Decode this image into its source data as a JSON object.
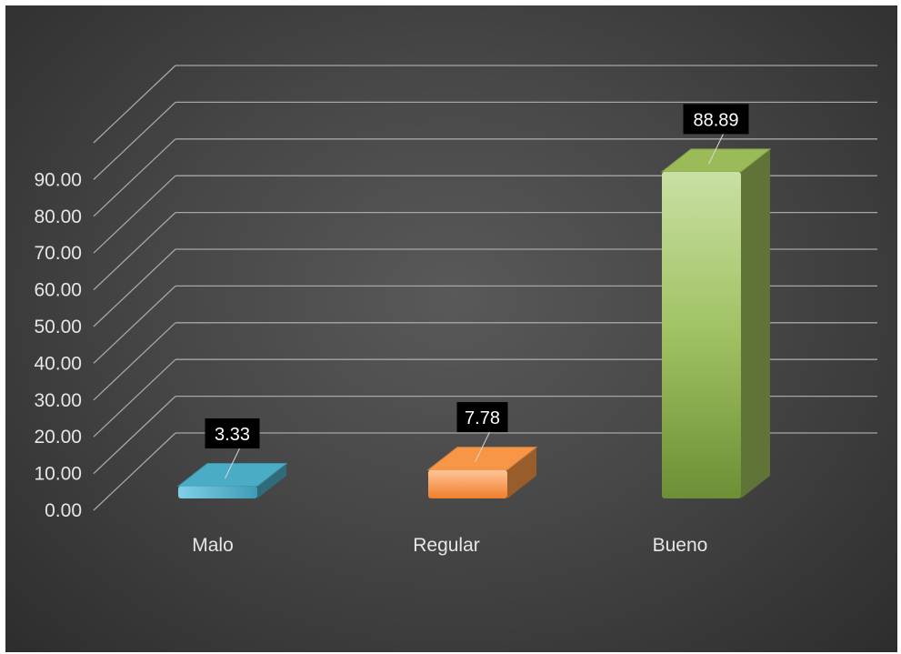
{
  "chart_data": {
    "type": "bar",
    "categories": [
      "Malo",
      "Regular",
      "Bueno"
    ],
    "values": [
      3.33,
      7.78,
      88.89
    ],
    "value_labels": [
      "3.33",
      "7.78",
      "88.89"
    ],
    "yticks": [
      "0.00",
      "10.00",
      "20.00",
      "30.00",
      "40.00",
      "50.00",
      "60.00",
      "70.00",
      "80.00",
      "90.00"
    ],
    "ylim": [
      0,
      100
    ],
    "grid": true,
    "legend": "none",
    "style": "3d-column",
    "colors": {
      "background": "#474747",
      "gridline": "#a6a6a6",
      "Malo": "#4bacc6",
      "Regular": "#f79646",
      "Bueno": "#9bbb59",
      "label_box": "#000000"
    }
  }
}
